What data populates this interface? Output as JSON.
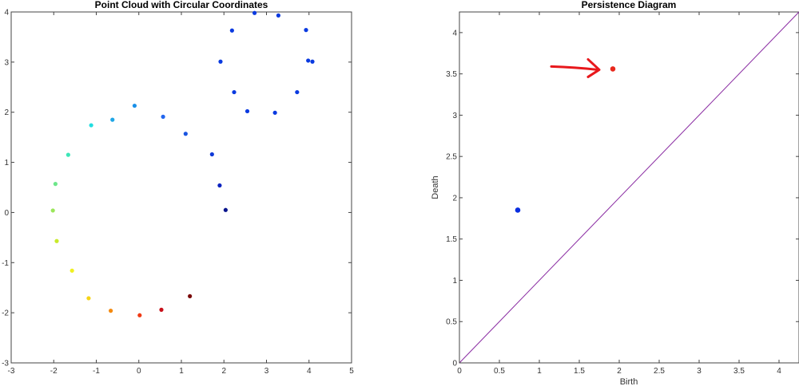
{
  "chart_data": [
    {
      "type": "scatter",
      "title": "Point Cloud with Circular Coordinates",
      "xlabel": "",
      "ylabel": "",
      "xlim": [
        -3,
        5
      ],
      "ylim": [
        -3,
        4
      ],
      "grid": false,
      "xticks": [
        "-3",
        "-2",
        "-1",
        "0",
        "1",
        "2",
        "3",
        "4",
        "5"
      ],
      "yticks": [
        "-3",
        "-2",
        "-1",
        "0",
        "1",
        "2",
        "3",
        "4"
      ],
      "points": [
        {
          "x": 2.72,
          "y": 3.98,
          "color": "#0a3ae0"
        },
        {
          "x": 3.28,
          "y": 3.93,
          "color": "#0a3ae0"
        },
        {
          "x": 2.19,
          "y": 3.63,
          "color": "#0a3ae0"
        },
        {
          "x": 3.93,
          "y": 3.64,
          "color": "#0a3ae0"
        },
        {
          "x": 1.92,
          "y": 3.01,
          "color": "#0a3ae0"
        },
        {
          "x": 3.98,
          "y": 3.03,
          "color": "#0a3ae0"
        },
        {
          "x": 4.08,
          "y": 3.01,
          "color": "#0a3ae0"
        },
        {
          "x": 2.24,
          "y": 2.4,
          "color": "#0a3ae0"
        },
        {
          "x": 3.72,
          "y": 2.4,
          "color": "#0a3ae0"
        },
        {
          "x": 2.55,
          "y": 2.02,
          "color": "#0a3ae0"
        },
        {
          "x": 3.2,
          "y": 1.99,
          "color": "#0a3ae0"
        },
        {
          "x": -0.1,
          "y": 2.13,
          "color": "#1a90e8"
        },
        {
          "x": -0.62,
          "y": 1.85,
          "color": "#1fa6e6"
        },
        {
          "x": 0.57,
          "y": 1.91,
          "color": "#2266ee"
        },
        {
          "x": -1.12,
          "y": 1.74,
          "color": "#22dde0"
        },
        {
          "x": 1.1,
          "y": 1.57,
          "color": "#1a55e0"
        },
        {
          "x": -1.66,
          "y": 1.15,
          "color": "#3de6b8"
        },
        {
          "x": 1.72,
          "y": 1.16,
          "color": "#0f3ad8"
        },
        {
          "x": -1.96,
          "y": 0.57,
          "color": "#6de68a"
        },
        {
          "x": 1.9,
          "y": 0.54,
          "color": "#0a22c0"
        },
        {
          "x": -2.02,
          "y": 0.04,
          "color": "#9be65a"
        },
        {
          "x": 2.04,
          "y": 0.05,
          "color": "#08148c"
        },
        {
          "x": -1.93,
          "y": -0.57,
          "color": "#c8ea2a"
        },
        {
          "x": -1.57,
          "y": -1.16,
          "color": "#f0f020"
        },
        {
          "x": -1.18,
          "y": -1.71,
          "color": "#f6d416"
        },
        {
          "x": -0.66,
          "y": -1.96,
          "color": "#f48a10"
        },
        {
          "x": 0.02,
          "y": -2.05,
          "color": "#f03a14"
        },
        {
          "x": 0.53,
          "y": -1.94,
          "color": "#c8101a"
        },
        {
          "x": 1.2,
          "y": -1.67,
          "color": "#7a0a0a"
        }
      ]
    },
    {
      "type": "scatter",
      "title": "Persistence Diagram",
      "xlabel": "Birth",
      "ylabel": "Death",
      "xlim": [
        0,
        4.25
      ],
      "ylim": [
        0,
        4.25
      ],
      "grid": false,
      "xticks": [
        "0",
        "0.5",
        "1",
        "1.5",
        "2",
        "2.5",
        "3",
        "3.5",
        "4"
      ],
      "yticks": [
        "0",
        "0.5",
        "1",
        "1.5",
        "2",
        "2.5",
        "3",
        "3.5",
        "4"
      ],
      "diagonal": {
        "from": [
          0,
          0
        ],
        "to": [
          4.25,
          4.25
        ],
        "color": "#8b2ea3"
      },
      "points": [
        {
          "x": 0.73,
          "y": 1.85,
          "color": "#0a2ee0"
        },
        {
          "x": 1.92,
          "y": 3.56,
          "color": "#e8281c"
        }
      ],
      "annotation": {
        "type": "arrow",
        "color": "#e8181c",
        "points_to": [
          1.92,
          3.56
        ]
      }
    }
  ]
}
